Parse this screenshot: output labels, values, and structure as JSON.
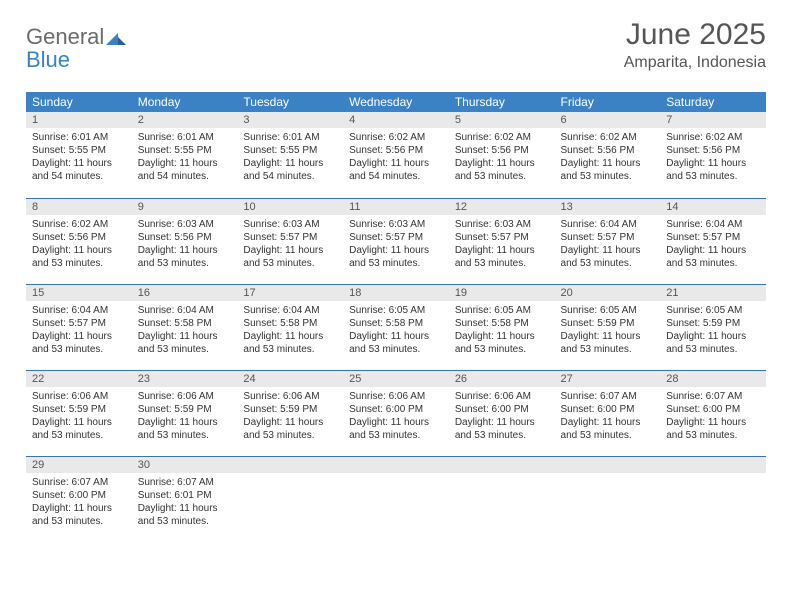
{
  "logo": {
    "part1": "General",
    "part2": "Blue"
  },
  "title": "June 2025",
  "subtitle": "Amparita, Indonesia",
  "colors": {
    "header_bg": "#3b82c4",
    "header_text": "#ffffff",
    "daynum_bg": "#e9e9e9",
    "row_border": "#3b72a8",
    "body_text": "#333333",
    "title_text": "#555555"
  },
  "weekdays": [
    "Sunday",
    "Monday",
    "Tuesday",
    "Wednesday",
    "Thursday",
    "Friday",
    "Saturday"
  ],
  "days": [
    {
      "n": "1",
      "sr": "6:01 AM",
      "ss": "5:55 PM",
      "dl": "11 hours and 54 minutes."
    },
    {
      "n": "2",
      "sr": "6:01 AM",
      "ss": "5:55 PM",
      "dl": "11 hours and 54 minutes."
    },
    {
      "n": "3",
      "sr": "6:01 AM",
      "ss": "5:55 PM",
      "dl": "11 hours and 54 minutes."
    },
    {
      "n": "4",
      "sr": "6:02 AM",
      "ss": "5:56 PM",
      "dl": "11 hours and 54 minutes."
    },
    {
      "n": "5",
      "sr": "6:02 AM",
      "ss": "5:56 PM",
      "dl": "11 hours and 53 minutes."
    },
    {
      "n": "6",
      "sr": "6:02 AM",
      "ss": "5:56 PM",
      "dl": "11 hours and 53 minutes."
    },
    {
      "n": "7",
      "sr": "6:02 AM",
      "ss": "5:56 PM",
      "dl": "11 hours and 53 minutes."
    },
    {
      "n": "8",
      "sr": "6:02 AM",
      "ss": "5:56 PM",
      "dl": "11 hours and 53 minutes."
    },
    {
      "n": "9",
      "sr": "6:03 AM",
      "ss": "5:56 PM",
      "dl": "11 hours and 53 minutes."
    },
    {
      "n": "10",
      "sr": "6:03 AM",
      "ss": "5:57 PM",
      "dl": "11 hours and 53 minutes."
    },
    {
      "n": "11",
      "sr": "6:03 AM",
      "ss": "5:57 PM",
      "dl": "11 hours and 53 minutes."
    },
    {
      "n": "12",
      "sr": "6:03 AM",
      "ss": "5:57 PM",
      "dl": "11 hours and 53 minutes."
    },
    {
      "n": "13",
      "sr": "6:04 AM",
      "ss": "5:57 PM",
      "dl": "11 hours and 53 minutes."
    },
    {
      "n": "14",
      "sr": "6:04 AM",
      "ss": "5:57 PM",
      "dl": "11 hours and 53 minutes."
    },
    {
      "n": "15",
      "sr": "6:04 AM",
      "ss": "5:57 PM",
      "dl": "11 hours and 53 minutes."
    },
    {
      "n": "16",
      "sr": "6:04 AM",
      "ss": "5:58 PM",
      "dl": "11 hours and 53 minutes."
    },
    {
      "n": "17",
      "sr": "6:04 AM",
      "ss": "5:58 PM",
      "dl": "11 hours and 53 minutes."
    },
    {
      "n": "18",
      "sr": "6:05 AM",
      "ss": "5:58 PM",
      "dl": "11 hours and 53 minutes."
    },
    {
      "n": "19",
      "sr": "6:05 AM",
      "ss": "5:58 PM",
      "dl": "11 hours and 53 minutes."
    },
    {
      "n": "20",
      "sr": "6:05 AM",
      "ss": "5:59 PM",
      "dl": "11 hours and 53 minutes."
    },
    {
      "n": "21",
      "sr": "6:05 AM",
      "ss": "5:59 PM",
      "dl": "11 hours and 53 minutes."
    },
    {
      "n": "22",
      "sr": "6:06 AM",
      "ss": "5:59 PM",
      "dl": "11 hours and 53 minutes."
    },
    {
      "n": "23",
      "sr": "6:06 AM",
      "ss": "5:59 PM",
      "dl": "11 hours and 53 minutes."
    },
    {
      "n": "24",
      "sr": "6:06 AM",
      "ss": "5:59 PM",
      "dl": "11 hours and 53 minutes."
    },
    {
      "n": "25",
      "sr": "6:06 AM",
      "ss": "6:00 PM",
      "dl": "11 hours and 53 minutes."
    },
    {
      "n": "26",
      "sr": "6:06 AM",
      "ss": "6:00 PM",
      "dl": "11 hours and 53 minutes."
    },
    {
      "n": "27",
      "sr": "6:07 AM",
      "ss": "6:00 PM",
      "dl": "11 hours and 53 minutes."
    },
    {
      "n": "28",
      "sr": "6:07 AM",
      "ss": "6:00 PM",
      "dl": "11 hours and 53 minutes."
    },
    {
      "n": "29",
      "sr": "6:07 AM",
      "ss": "6:00 PM",
      "dl": "11 hours and 53 minutes."
    },
    {
      "n": "30",
      "sr": "6:07 AM",
      "ss": "6:01 PM",
      "dl": "11 hours and 53 minutes."
    }
  ],
  "labels": {
    "sunrise": "Sunrise:",
    "sunset": "Sunset:",
    "daylight": "Daylight:"
  }
}
